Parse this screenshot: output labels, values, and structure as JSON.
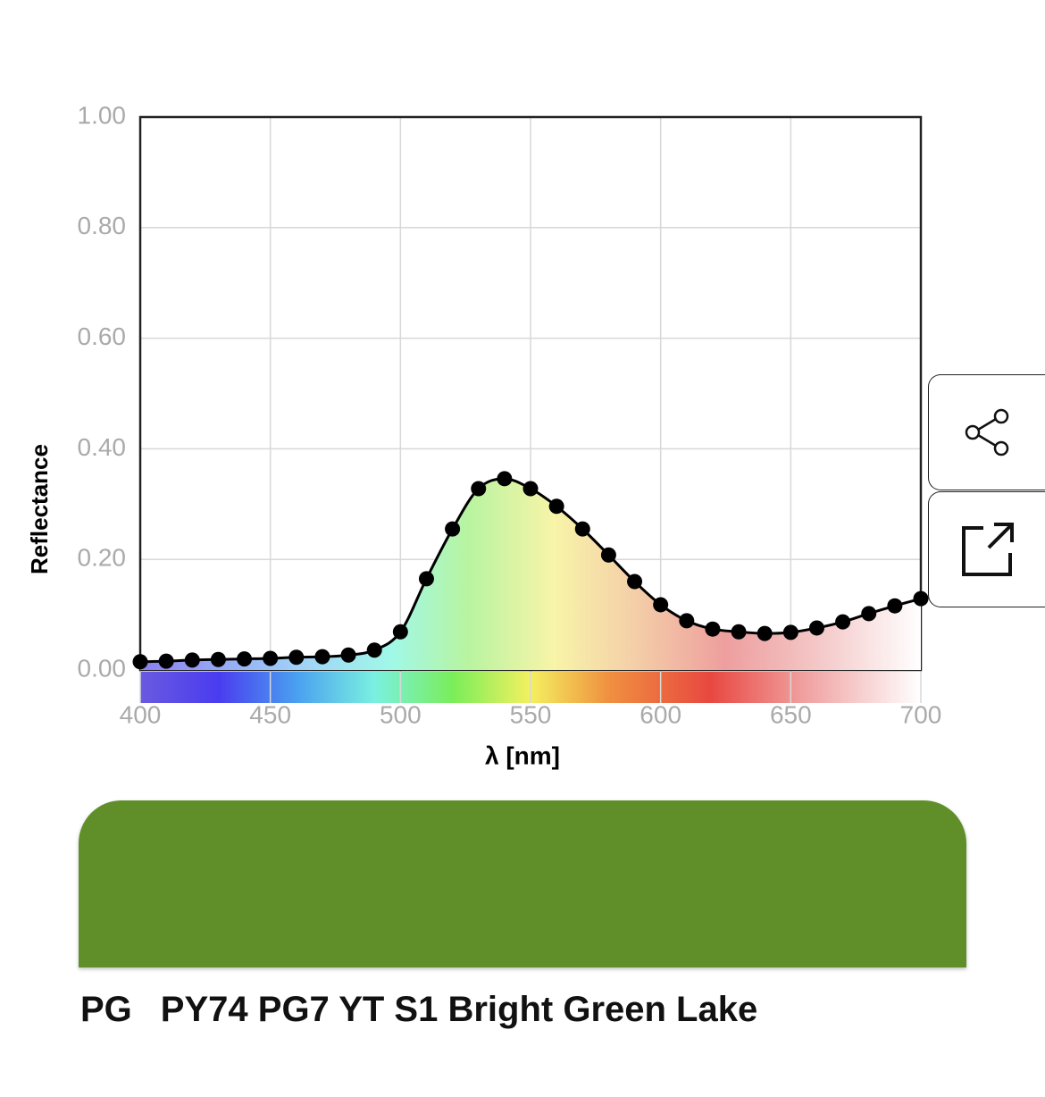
{
  "chart_data": {
    "type": "line",
    "x_label": "λ [nm]",
    "y_label": "Reflectance",
    "x": [
      400,
      410,
      420,
      430,
      440,
      450,
      460,
      470,
      480,
      490,
      500,
      510,
      520,
      530,
      540,
      550,
      560,
      570,
      580,
      590,
      600,
      610,
      620,
      630,
      640,
      650,
      660,
      670,
      680,
      690,
      700
    ],
    "series": [
      {
        "color": "#000000",
        "values": [
          0.015,
          0.016,
          0.018,
          0.019,
          0.02,
          0.021,
          0.023,
          0.024,
          0.027,
          0.036,
          0.069,
          0.165,
          0.255,
          0.328,
          0.346,
          0.328,
          0.296,
          0.255,
          0.208,
          0.16,
          0.118,
          0.089,
          0.074,
          0.069,
          0.066,
          0.068,
          0.076,
          0.087,
          0.102,
          0.116,
          0.129
        ]
      }
    ],
    "xlim": [
      400,
      700
    ],
    "xticks": [
      400,
      450,
      500,
      550,
      600,
      650,
      700
    ],
    "ylim": [
      0,
      1
    ],
    "yticks": [
      {
        "value": 0,
        "label": "0.00"
      },
      {
        "value": 0.2,
        "label": "0.20"
      },
      {
        "value": 0.4,
        "label": "0.40"
      },
      {
        "value": 0.6,
        "label": "0.60"
      },
      {
        "value": 0.8,
        "label": "0.80"
      },
      {
        "value": 1,
        "label": "1.00"
      }
    ],
    "grid": true
  },
  "swatch": {
    "color": "#608f2a",
    "code": "PG",
    "name": "PY74 PG7 YT S1 Bright Green Lake"
  }
}
